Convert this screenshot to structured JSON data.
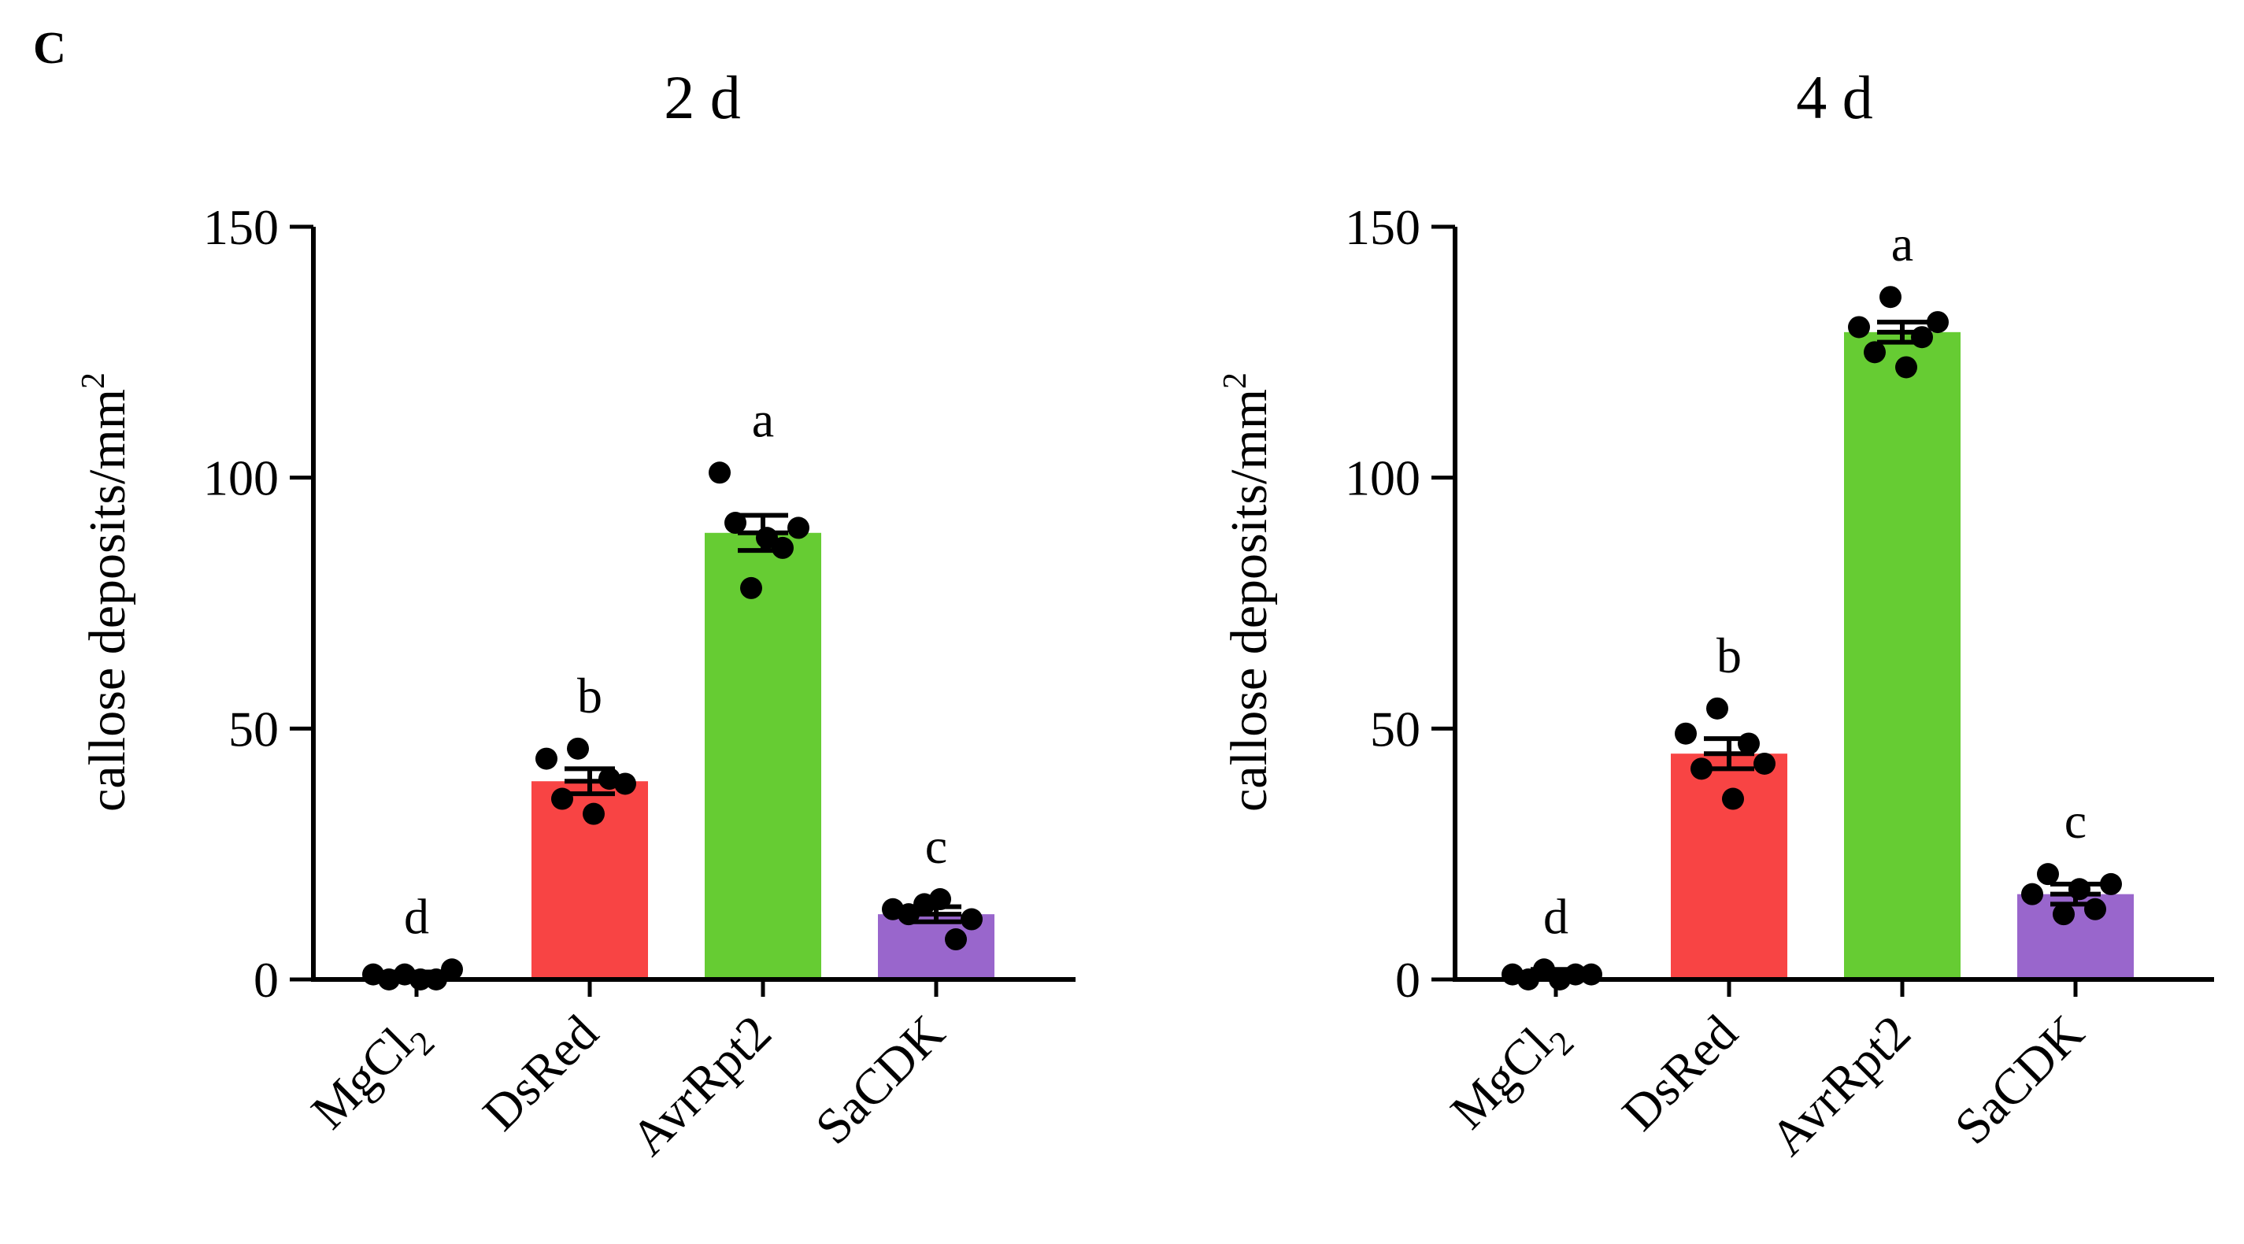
{
  "figure": {
    "panel_letter": "C"
  },
  "chart_data": [
    {
      "type": "bar",
      "title": "2 d",
      "xlabel": "",
      "ylabel": "callose deposits/mm",
      "ylabel_superscript": "2",
      "ylim": [
        0,
        150
      ],
      "yticks": [
        0,
        50,
        100,
        150
      ],
      "categories": [
        {
          "name": "MgCl",
          "subscript": "2"
        },
        {
          "name": "DsRed",
          "subscript": ""
        },
        {
          "name": "AvrRpt2",
          "subscript": ""
        },
        {
          "name": "SaCDK",
          "subscript": ""
        }
      ],
      "values": [
        1,
        39.5,
        89,
        13
      ],
      "errors": [
        0.5,
        2.5,
        3.5,
        1.5
      ],
      "colors": [
        "#ffffff",
        "#f84444",
        "#66cc33",
        "#9966cc"
      ],
      "letters": [
        "d",
        "b",
        "a",
        "c"
      ],
      "points": [
        [
          1,
          0,
          1,
          0,
          0,
          2
        ],
        [
          44,
          36,
          46,
          33,
          40,
          39
        ],
        [
          101,
          91,
          78,
          88,
          86,
          90
        ],
        [
          14,
          13,
          15,
          16,
          8,
          12
        ]
      ]
    },
    {
      "type": "bar",
      "title": "4 d",
      "xlabel": "",
      "ylabel": "callose deposits/mm",
      "ylabel_superscript": "2",
      "ylim": [
        0,
        150
      ],
      "yticks": [
        0,
        50,
        100,
        150
      ],
      "categories": [
        {
          "name": "MgCl",
          "subscript": "2"
        },
        {
          "name": "DsRed",
          "subscript": ""
        },
        {
          "name": "AvrRpt2",
          "subscript": ""
        },
        {
          "name": "SaCDK",
          "subscript": ""
        }
      ],
      "values": [
        1.5,
        45,
        129,
        17
      ],
      "errors": [
        0.5,
        3,
        2,
        2
      ],
      "colors": [
        "#ffffff",
        "#f84444",
        "#66cc33",
        "#9966cc"
      ],
      "letters": [
        "d",
        "b",
        "a",
        "c"
      ],
      "points": [
        [
          1,
          0,
          2,
          0,
          1,
          1
        ],
        [
          49,
          42,
          54,
          36,
          47,
          43
        ],
        [
          130,
          125,
          136,
          122,
          128,
          131
        ],
        [
          17,
          21,
          13,
          18,
          14,
          19
        ]
      ]
    }
  ]
}
